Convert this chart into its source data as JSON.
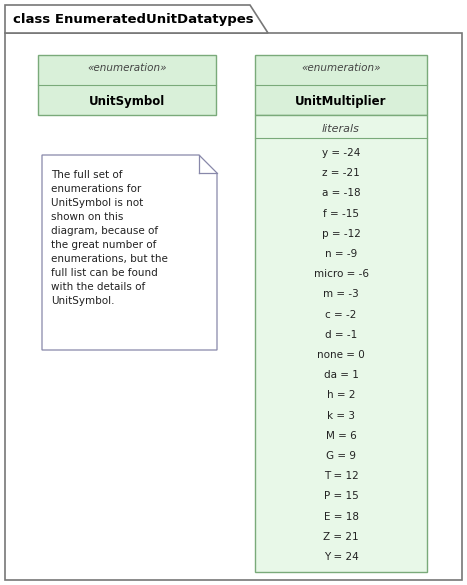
{
  "title": "class EnumeratedUnitDatatypes",
  "bg_color": "#ffffff",
  "outer_bg": "#ffffff",
  "unit_symbol": {
    "stereotype": "«enumeration»",
    "name": "UnitSymbol",
    "box_bg": "#d9f0d9",
    "box_border": "#7aaa7a"
  },
  "unit_multiplier": {
    "stereotype": "«enumeration»",
    "name": "UnitMultiplier",
    "box_bg": "#d9f0d9",
    "box_border": "#7aaa7a",
    "literals_label": "literals",
    "literals": [
      "y = -24",
      "z = -21",
      "a = -18",
      "f = -15",
      "p = -12",
      "n = -9",
      "micro = -6",
      "m = -3",
      "c = -2",
      "d = -1",
      "none = 0",
      "da = 1",
      "h = 2",
      "k = 3",
      "M = 6",
      "G = 9",
      "T = 12",
      "P = 15",
      "E = 18",
      "Z = 21",
      "Y = 24"
    ],
    "literals_bg": "#e8f8e8",
    "literals_border": "#7aaa7a"
  },
  "note": {
    "text": "The full set of\nenumerations for\nUnitSymbol is not\nshown on this\ndiagram, because of\nthe great number of\nenumerations, but the\nfull list can be found\nwith the details of\nUnitSymbol.",
    "bg": "#ffffff",
    "border": "#8888aa"
  },
  "outer_border": "#777777",
  "title_fontsize": 9.5,
  "stereo_fontsize": 7.5,
  "name_fontsize": 8.5,
  "literal_fontsize": 7.5,
  "note_fontsize": 7.5
}
